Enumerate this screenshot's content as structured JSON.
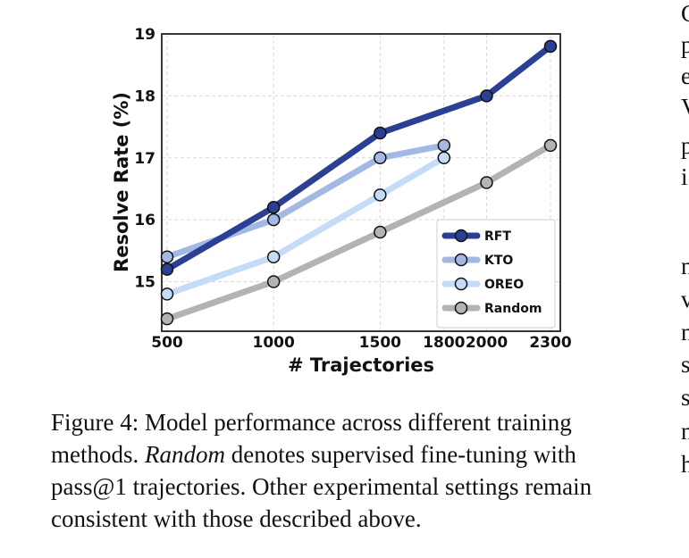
{
  "chart_data": {
    "type": "line",
    "title": "",
    "xlabel": "# Trajectories",
    "ylabel": "Resolve Rate (%)",
    "xlim": [
      500,
      2300
    ],
    "ylim": [
      14.2,
      19
    ],
    "x_ticks": [
      "500",
      "1000",
      "1500",
      "1800",
      "2000",
      "2300"
    ],
    "y_ticks": [
      "15",
      "16",
      "17",
      "18",
      "19"
    ],
    "grid": true,
    "legend_position": "lower-right",
    "series": [
      {
        "name": "RFT",
        "color": "#2b3f93",
        "x": [
          500,
          1000,
          1500,
          2000,
          2300
        ],
        "y": [
          15.2,
          16.2,
          17.4,
          18.0,
          18.8
        ]
      },
      {
        "name": "KTO",
        "color": "#a3b8e3",
        "x": [
          500,
          1000,
          1500,
          1800
        ],
        "y": [
          15.4,
          16.0,
          17.0,
          17.2
        ]
      },
      {
        "name": "OREO",
        "color": "#c5dbf7",
        "x": [
          500,
          1000,
          1500,
          1800
        ],
        "y": [
          14.8,
          15.4,
          16.4,
          17.0
        ]
      },
      {
        "name": "Random",
        "color": "#b3b3b3",
        "x": [
          500,
          1000,
          1500,
          2000,
          2300
        ],
        "y": [
          14.4,
          15.0,
          15.8,
          16.6,
          17.2
        ]
      }
    ]
  },
  "caption": {
    "line1": "Figure 4: Model performance across different training",
    "line2a": "methods. ",
    "line2_emph": "Random",
    "line2b": " denotes supervised fine-tuning with",
    "line3": "pass@1 trajectories. Other experimental settings remain",
    "line4": "consistent with those described above."
  },
  "side_text": {
    "letters": [
      "C",
      "p",
      "e",
      "V",
      "p",
      "i",
      "n",
      "v",
      "n",
      "s",
      "s",
      "n",
      "h"
    ]
  }
}
